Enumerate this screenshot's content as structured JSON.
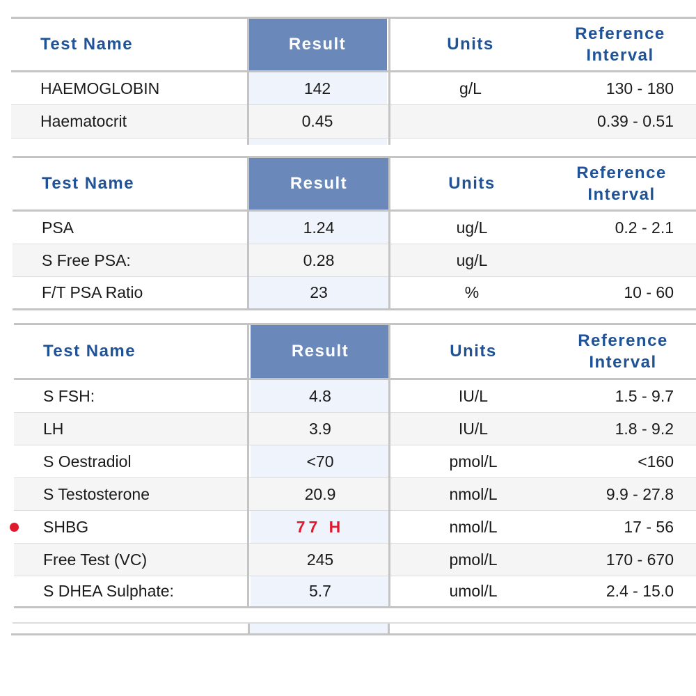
{
  "header": {
    "test_name": "Test Name",
    "result": "Result",
    "units": "Units",
    "reference_interval_line1": "Reference",
    "reference_interval_line2": "Interval"
  },
  "sections": [
    {
      "rows": [
        {
          "name": "HAEMOGLOBIN",
          "result": "142",
          "units": "g/L",
          "reference": "130 - 180",
          "flagged": false
        },
        {
          "name": "Haematocrit",
          "result": "0.45",
          "units": "",
          "reference": "0.39 - 0.51",
          "flagged": false
        }
      ]
    },
    {
      "rows": [
        {
          "name": "PSA",
          "result": "1.24",
          "units": "ug/L",
          "reference": "0.2 - 2.1",
          "flagged": false
        },
        {
          "name": "S Free PSA:",
          "result": "0.28",
          "units": "ug/L",
          "reference": "",
          "flagged": false
        },
        {
          "name": "F/T PSA Ratio",
          "result": "23",
          "units": "%",
          "reference": "10 - 60",
          "flagged": false
        }
      ]
    },
    {
      "rows": [
        {
          "name": "S FSH:",
          "result": "4.8",
          "units": "IU/L",
          "reference": "1.5 - 9.7",
          "flagged": false
        },
        {
          "name": "LH",
          "result": "3.9",
          "units": "IU/L",
          "reference": "1.8 - 9.2",
          "flagged": false
        },
        {
          "name": "S Oestradiol",
          "result": "<70",
          "units": "pmol/L",
          "reference": "<160",
          "flagged": false
        },
        {
          "name": "S Testosterone",
          "result": "20.9",
          "units": "nmol/L",
          "reference": "9.9 - 27.8",
          "flagged": false
        },
        {
          "name": "SHBG",
          "result": "77 H",
          "units": "nmol/L",
          "reference": "17 - 56",
          "flagged": true
        },
        {
          "name": "Free Test (VC)",
          "result": "245",
          "units": "pmol/L",
          "reference": "170 - 670",
          "flagged": false
        },
        {
          "name": "S DHEA Sulphate:",
          "result": "5.7",
          "units": "umol/L",
          "reference": "2.4 - 15.0",
          "flagged": false
        }
      ]
    }
  ],
  "colors": {
    "header_text": "#1f5296",
    "result_header_bg": "#6b88bb",
    "result_column_bg": "#eef3fc",
    "flag_color": "#e0192d"
  }
}
